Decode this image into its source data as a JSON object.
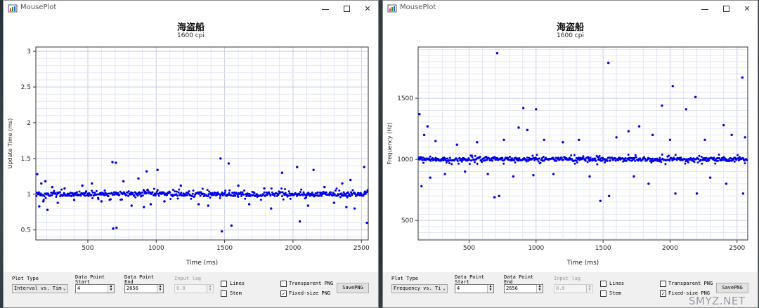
{
  "windows": [
    {
      "title": "MousePlot",
      "plot_title": "海盗船",
      "plot_subtitle": "1600 cpi",
      "controls": {
        "plot_type_label": "Plot Type",
        "plot_type_value": "Interval vs. Tim",
        "start_label": "Data Point\nStart",
        "start_value": "4",
        "end_label": "Data Point\nEnd",
        "end_value": "2656",
        "lag_label": "Input lag",
        "lag_value": "0.0",
        "lines_label": "Lines",
        "stem_label": "Stem",
        "transparent_label": "Transparent PNG",
        "fixed_label": "Fixed-size PNG",
        "save_label": "SavePNG"
      }
    },
    {
      "title": "MousePlot",
      "plot_title": "海盗船",
      "plot_subtitle": "1600 cpi",
      "controls": {
        "plot_type_label": "Plot Type",
        "plot_type_value": "Frequency vs. Ti",
        "start_label": "Data Point\nStart",
        "start_value": "4",
        "end_label": "Data Point\nEnd",
        "end_value": "2656",
        "lag_label": "Input lag",
        "lag_value": "0.0",
        "lines_label": "Lines",
        "stem_label": "Stem",
        "transparent_label": "Transparent PNG",
        "fixed_label": "Fixed-size PNG",
        "save_label": "SavePNG"
      }
    }
  ],
  "watermark": "SMYZ.NET",
  "chart_data": [
    {
      "type": "scatter",
      "title": "",
      "xlabel": "Time (ms)",
      "ylabel": "Update Time (ms)",
      "xlim": [
        120,
        2550
      ],
      "ylim": [
        0.36,
        3.06
      ],
      "xticks": [
        500,
        1000,
        1500,
        2000,
        2500
      ],
      "yticks": [
        0.5,
        1,
        1.5,
        2,
        2.5,
        3
      ],
      "ytick_labels": [
        "0.5",
        "1",
        "1.5",
        "2",
        "2.5",
        "3"
      ],
      "grid": true,
      "color": "#0000e6",
      "baseline": 1.0,
      "scatter_band": 0.08,
      "outliers": [
        [
          130,
          1.28
        ],
        [
          145,
          0.83
        ],
        [
          160,
          1.15
        ],
        [
          175,
          0.9
        ],
        [
          190,
          1.18
        ],
        [
          205,
          0.78
        ],
        [
          240,
          1.1
        ],
        [
          280,
          0.88
        ],
        [
          330,
          1.08
        ],
        [
          400,
          0.92
        ],
        [
          460,
          1.12
        ],
        [
          530,
          1.15
        ],
        [
          600,
          0.9
        ],
        [
          680,
          1.45
        ],
        [
          685,
          0.52
        ],
        [
          705,
          1.44
        ],
        [
          710,
          0.53
        ],
        [
          760,
          1.18
        ],
        [
          820,
          0.84
        ],
        [
          870,
          1.22
        ],
        [
          910,
          0.82
        ],
        [
          930,
          1.32
        ],
        [
          960,
          0.86
        ],
        [
          1010,
          1.34
        ],
        [
          1060,
          0.9
        ],
        [
          1180,
          1.12
        ],
        [
          1310,
          0.86
        ],
        [
          1380,
          0.84
        ],
        [
          1470,
          1.5
        ],
        [
          1480,
          0.48
        ],
        [
          1550,
          0.56
        ],
        [
          1530,
          1.43
        ],
        [
          1600,
          1.12
        ],
        [
          1680,
          0.86
        ],
        [
          1790,
          1.08
        ],
        [
          1840,
          0.8
        ],
        [
          1920,
          1.3
        ],
        [
          2030,
          1.38
        ],
        [
          2050,
          0.62
        ],
        [
          2110,
          0.84
        ],
        [
          2150,
          1.34
        ],
        [
          2230,
          1.1
        ],
        [
          2300,
          0.88
        ],
        [
          2360,
          1.15
        ],
        [
          2390,
          0.82
        ],
        [
          2420,
          1.2
        ],
        [
          2450,
          0.8
        ],
        [
          2520,
          1.38
        ],
        [
          2540,
          0.6
        ]
      ]
    },
    {
      "type": "scatter",
      "title": "",
      "xlabel": "Time (ms)",
      "ylabel": "Frequency (Hz)",
      "xlim": [
        120,
        2580
      ],
      "ylim": [
        340,
        1920
      ],
      "xticks": [
        500,
        1000,
        1500,
        2000,
        2500
      ],
      "yticks": [
        500,
        1000,
        1500
      ],
      "ytick_labels": [
        "500",
        "1000",
        "1500"
      ],
      "grid": true,
      "color": "#0000e6",
      "baseline": 1000,
      "scatter_band": 40,
      "outliers": [
        [
          130,
          1370
        ],
        [
          145,
          780
        ],
        [
          165,
          1200
        ],
        [
          190,
          1270
        ],
        [
          210,
          850
        ],
        [
          250,
          1150
        ],
        [
          320,
          880
        ],
        [
          410,
          1120
        ],
        [
          470,
          900
        ],
        [
          560,
          1140
        ],
        [
          640,
          880
        ],
        [
          690,
          690
        ],
        [
          710,
          1870
        ],
        [
          725,
          700
        ],
        [
          760,
          1160
        ],
        [
          830,
          860
        ],
        [
          870,
          1260
        ],
        [
          905,
          1420
        ],
        [
          935,
          1240
        ],
        [
          980,
          870
        ],
        [
          1000,
          1410
        ],
        [
          1060,
          1160
        ],
        [
          1130,
          880
        ],
        [
          1200,
          1140
        ],
        [
          1320,
          1160
        ],
        [
          1400,
          860
        ],
        [
          1480,
          660
        ],
        [
          1540,
          1790
        ],
        [
          1545,
          700
        ],
        [
          1600,
          1180
        ],
        [
          1690,
          1230
        ],
        [
          1730,
          860
        ],
        [
          1770,
          1270
        ],
        [
          1840,
          800
        ],
        [
          1870,
          1200
        ],
        [
          1940,
          1440
        ],
        [
          2000,
          1160
        ],
        [
          2020,
          1600
        ],
        [
          2040,
          720
        ],
        [
          2120,
          1410
        ],
        [
          2190,
          1510
        ],
        [
          2200,
          720
        ],
        [
          2260,
          1160
        ],
        [
          2300,
          850
        ],
        [
          2400,
          1280
        ],
        [
          2420,
          800
        ],
        [
          2460,
          1200
        ],
        [
          2540,
          1670
        ],
        [
          2545,
          720
        ],
        [
          2560,
          1180
        ]
      ]
    }
  ]
}
